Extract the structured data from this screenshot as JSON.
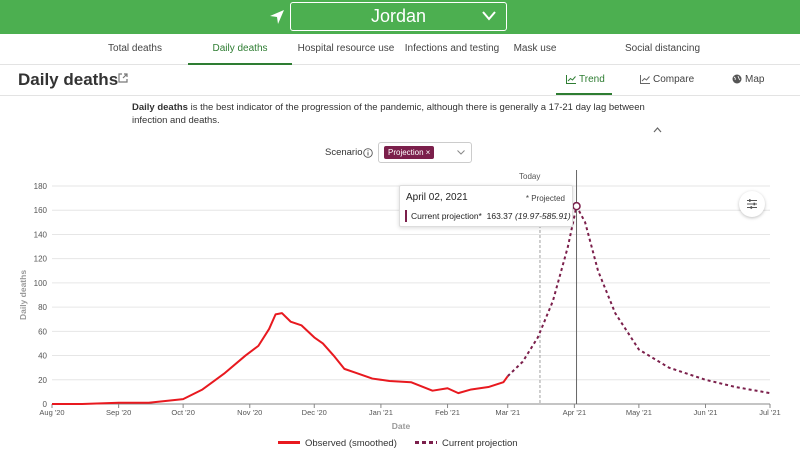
{
  "header": {
    "country": "Jordan"
  },
  "nav_tabs": [
    "Total deaths",
    "Daily deaths",
    "Hospital resource use",
    "Infections and testing",
    "Mask use",
    "Social distancing"
  ],
  "active_tab": "Daily deaths",
  "page": {
    "title": "Daily deaths",
    "view_tabs": {
      "trend": "Trend",
      "compare": "Compare",
      "map": "Map"
    },
    "description_bold": "Daily deaths",
    "description_rest": " is the best indicator of the progression of the pandemic, although there is generally a 17-21 day lag between infection and deaths."
  },
  "scenario": {
    "label": "Scenario",
    "chip": "Projection",
    "chip_close": "×"
  },
  "tooltip": {
    "date": "April 02, 2021",
    "projected": "* Projected",
    "series": "Current projection*",
    "value": "163.37",
    "range": "(19.97-585.91)"
  },
  "colors": {
    "brand": "#4caf50",
    "active": "#2e7d32",
    "observed": "#e8191f",
    "projection": "#7b1f4b"
  },
  "chart_data": {
    "type": "line",
    "xlabel": "Date",
    "ylabel": "Daily deaths",
    "ylim": [
      0,
      180
    ],
    "yticks": [
      0,
      20,
      40,
      60,
      80,
      100,
      120,
      140,
      160,
      180
    ],
    "xticks": [
      "Aug '20",
      "Sep '20",
      "Oct '20",
      "Nov '20",
      "Dec '20",
      "Jan '21",
      "Feb '21",
      "Mar '21",
      "Apr '21",
      "May '21",
      "Jun '21",
      "Jul '21"
    ],
    "xlim": [
      "2020-08-01",
      "2021-07-01"
    ],
    "today_label": "Today",
    "today_date": "2021-03-16",
    "grid": true,
    "legend_position": "bottom",
    "series": [
      {
        "name": "Observed (smoothed)",
        "style": "solid",
        "x": [
          "2020-08-01",
          "2020-08-15",
          "2020-09-01",
          "2020-09-15",
          "2020-10-01",
          "2020-10-10",
          "2020-10-20",
          "2020-10-30",
          "2020-11-05",
          "2020-11-10",
          "2020-11-13",
          "2020-11-16",
          "2020-11-20",
          "2020-11-25",
          "2020-12-01",
          "2020-12-05",
          "2020-12-10",
          "2020-12-15",
          "2020-12-20",
          "2020-12-28",
          "2021-01-05",
          "2021-01-15",
          "2021-01-25",
          "2021-02-01",
          "2021-02-06",
          "2021-02-12",
          "2021-02-20",
          "2021-02-27",
          "2021-03-01"
        ],
        "y": [
          0,
          0,
          1,
          1,
          4,
          12,
          25,
          40,
          48,
          62,
          74,
          75,
          68,
          65,
          55,
          50,
          40,
          29,
          26,
          21,
          19,
          18,
          11,
          13,
          9,
          12,
          14,
          18,
          23
        ]
      },
      {
        "name": "Current projection",
        "style": "dashed",
        "x": [
          "2021-03-01",
          "2021-03-08",
          "2021-03-15",
          "2021-03-22",
          "2021-03-29",
          "2021-04-02",
          "2021-04-06",
          "2021-04-12",
          "2021-04-20",
          "2021-05-01",
          "2021-05-15",
          "2021-06-01",
          "2021-06-15",
          "2021-07-01"
        ],
        "y": [
          23,
          35,
          55,
          85,
          130,
          163.37,
          150,
          110,
          75,
          45,
          30,
          20,
          14,
          9
        ]
      }
    ]
  }
}
